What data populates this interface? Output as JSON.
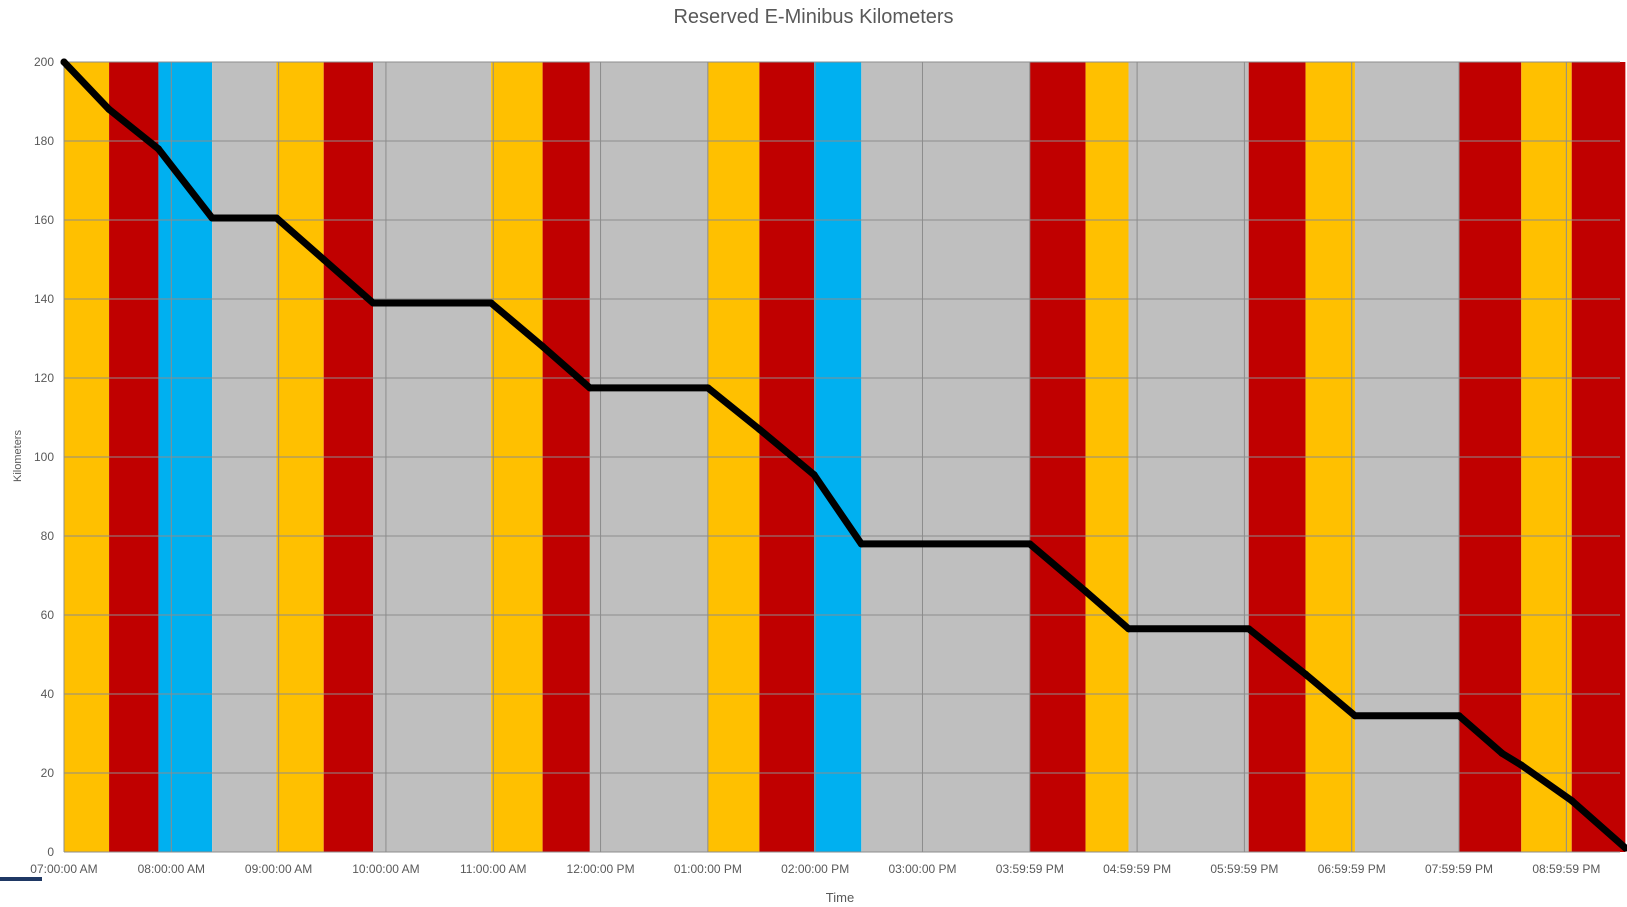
{
  "chart_data": {
    "type": "line",
    "title": "Reserved E-Minibus Kilometers",
    "xlabel": "Time",
    "ylabel": "Kilometers",
    "ylim": [
      0,
      200
    ],
    "yticks": [
      0,
      20,
      40,
      60,
      80,
      100,
      120,
      140,
      160,
      180,
      200
    ],
    "xlim_hours": [
      7,
      21.5
    ],
    "xticks": [
      {
        "hour": 7,
        "label": "07:00:00 AM"
      },
      {
        "hour": 8,
        "label": "08:00:00 AM"
      },
      {
        "hour": 9,
        "label": "09:00:00 AM"
      },
      {
        "hour": 10,
        "label": "10:00:00 AM"
      },
      {
        "hour": 11,
        "label": "11:00:00 AM"
      },
      {
        "hour": 12,
        "label": "12:00:00 PM"
      },
      {
        "hour": 13,
        "label": "01:00:00 PM"
      },
      {
        "hour": 14,
        "label": "02:00:00 PM"
      },
      {
        "hour": 15,
        "label": "03:00:00 PM"
      },
      {
        "hour": 16,
        "label": "03:59:59 PM"
      },
      {
        "hour": 17,
        "label": "04:59:59 PM"
      },
      {
        "hour": 18,
        "label": "05:59:59 PM"
      },
      {
        "hour": 19,
        "label": "06:59:59 PM"
      },
      {
        "hour": 20,
        "label": "07:59:59 PM"
      },
      {
        "hour": 21,
        "label": "08:59:59 PM"
      }
    ],
    "colors": {
      "yellow": "#ffc000",
      "red": "#c00000",
      "blue": "#00b0f0",
      "gray": "#bfbfbf",
      "line": "#000000",
      "grid": "#8c8c8c"
    },
    "bands": [
      {
        "start": 7.0,
        "end": 7.42,
        "color": "yellow"
      },
      {
        "start": 7.42,
        "end": 7.88,
        "color": "red"
      },
      {
        "start": 7.88,
        "end": 8.38,
        "color": "blue"
      },
      {
        "start": 8.38,
        "end": 8.98,
        "color": "gray"
      },
      {
        "start": 8.98,
        "end": 9.42,
        "color": "yellow"
      },
      {
        "start": 9.42,
        "end": 9.88,
        "color": "red"
      },
      {
        "start": 9.88,
        "end": 10.98,
        "color": "gray"
      },
      {
        "start": 10.98,
        "end": 11.46,
        "color": "yellow"
      },
      {
        "start": 11.46,
        "end": 11.9,
        "color": "red"
      },
      {
        "start": 11.9,
        "end": 13.0,
        "color": "gray"
      },
      {
        "start": 13.0,
        "end": 13.48,
        "color": "yellow"
      },
      {
        "start": 13.48,
        "end": 13.99,
        "color": "red"
      },
      {
        "start": 13.99,
        "end": 14.43,
        "color": "blue"
      },
      {
        "start": 14.43,
        "end": 16.0,
        "color": "gray"
      },
      {
        "start": 16.0,
        "end": 16.52,
        "color": "red"
      },
      {
        "start": 16.52,
        "end": 16.92,
        "color": "yellow"
      },
      {
        "start": 16.92,
        "end": 18.04,
        "color": "gray"
      },
      {
        "start": 18.04,
        "end": 18.57,
        "color": "red"
      },
      {
        "start": 18.57,
        "end": 19.03,
        "color": "yellow"
      },
      {
        "start": 19.03,
        "end": 20.0,
        "color": "gray"
      },
      {
        "start": 20.0,
        "end": 20.58,
        "color": "red"
      },
      {
        "start": 20.58,
        "end": 21.05,
        "color": "yellow"
      },
      {
        "start": 21.05,
        "end": 21.55,
        "color": "red"
      }
    ],
    "series": [
      {
        "color": "#000000",
        "x": [
          7.0,
          7.42,
          7.88,
          8.38,
          8.98,
          9.42,
          9.88,
          10.98,
          11.46,
          11.9,
          13.0,
          13.48,
          13.99,
          14.43,
          16.0,
          16.52,
          16.92,
          18.04,
          18.57,
          19.03,
          20.0,
          20.4,
          20.58,
          21.05,
          21.55
        ],
        "y": [
          200,
          188,
          178,
          160.5,
          160.5,
          150,
          139,
          139,
          128,
          117.5,
          117.5,
          107,
          95.5,
          78,
          78,
          66,
          56.5,
          56.5,
          45,
          34.5,
          34.5,
          25,
          22,
          13,
          1
        ]
      }
    ]
  }
}
